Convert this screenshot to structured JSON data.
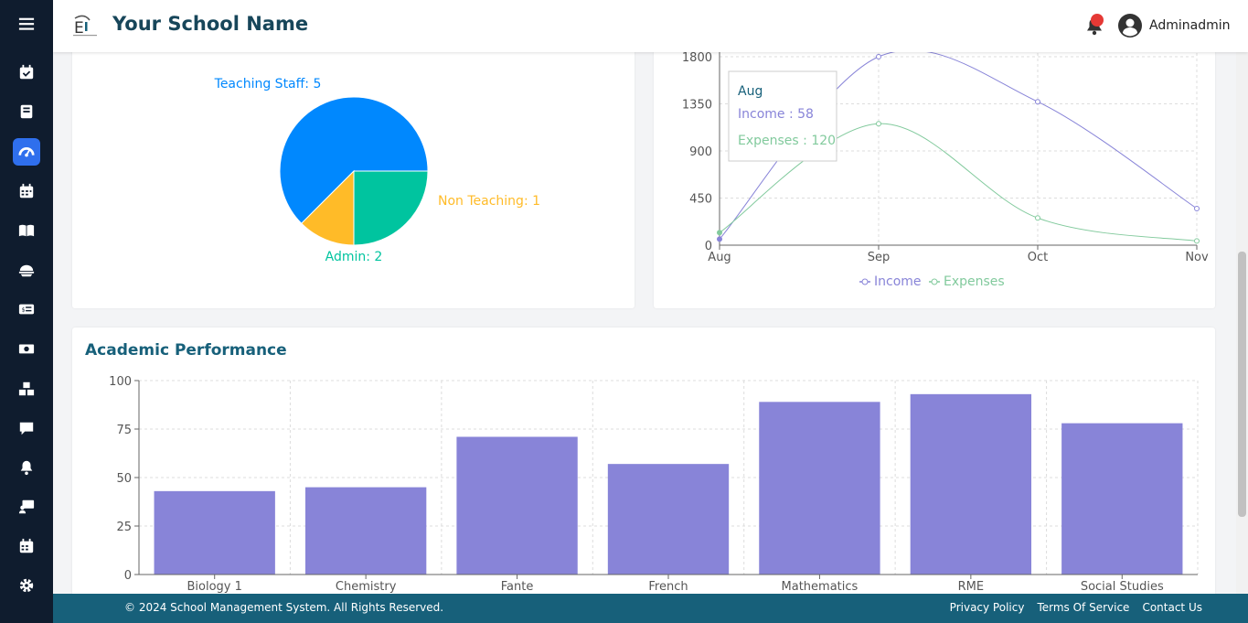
{
  "header": {
    "school_name": "Your School Name",
    "username": "Adminadmin"
  },
  "sidebar": {
    "items": [
      {
        "icon": "menu-icon"
      },
      {
        "icon": "calendar-check-icon"
      },
      {
        "icon": "book-icon"
      },
      {
        "icon": "dashboard-gauge-icon",
        "active": true
      },
      {
        "icon": "calendar-icon"
      },
      {
        "icon": "open-book-icon"
      },
      {
        "icon": "bowl-icon"
      },
      {
        "icon": "fee-card-icon"
      },
      {
        "icon": "money-icon"
      },
      {
        "icon": "boxes-icon"
      },
      {
        "icon": "chat-icon"
      },
      {
        "icon": "bell-icon"
      },
      {
        "icon": "teacher-board-icon"
      },
      {
        "icon": "calendar-grid-icon"
      },
      {
        "icon": "gear-icon"
      }
    ]
  },
  "staff_pie": {
    "chart_data": {
      "type": "pie",
      "slices": [
        {
          "label": "Teaching Staff: 5",
          "value": 5,
          "color": "#0088fe"
        },
        {
          "label": "Non Teaching: 1",
          "value": 1,
          "color": "#ffbb28"
        },
        {
          "label": "Admin: 2",
          "value": 2,
          "color": "#00c49f"
        }
      ]
    }
  },
  "finance_line": {
    "chart_data": {
      "type": "line",
      "categories": [
        "Aug",
        "Sep",
        "Oct",
        "Nov"
      ],
      "y_ticks": [
        "0",
        "450",
        "900",
        "1350",
        "1800"
      ],
      "ylim": [
        0,
        1800
      ],
      "series": [
        {
          "name": "Income",
          "values": [
            58,
            1800,
            1370,
            350
          ],
          "color": "#8884d8"
        },
        {
          "name": "Expenses",
          "values": [
            120,
            1160,
            260,
            40
          ],
          "color": "#82ca9d"
        }
      ],
      "grid": true
    },
    "tooltip": {
      "title": "Aug",
      "income": "Income : 58",
      "expenses": "Expenses : 120"
    },
    "legend": [
      "Income",
      "Expenses"
    ]
  },
  "academic": {
    "title": "Academic Performance",
    "chart_data": {
      "type": "bar",
      "categories": [
        "Biology 1",
        "Chemistry",
        "Fante",
        "French",
        "Mathematics",
        "RME",
        "Social Studies"
      ],
      "values": [
        43,
        45,
        71,
        57,
        89,
        93,
        78
      ],
      "y_ticks": [
        "0",
        "25",
        "50",
        "75",
        "100"
      ],
      "ylim": [
        0,
        100
      ],
      "color": "#8884d8",
      "grid": true
    }
  },
  "footer": {
    "copyright": "© 2024 School Management System. All Rights Reserved.",
    "links": [
      "Privacy Policy",
      "Terms Of Service",
      "Contact Us"
    ]
  }
}
